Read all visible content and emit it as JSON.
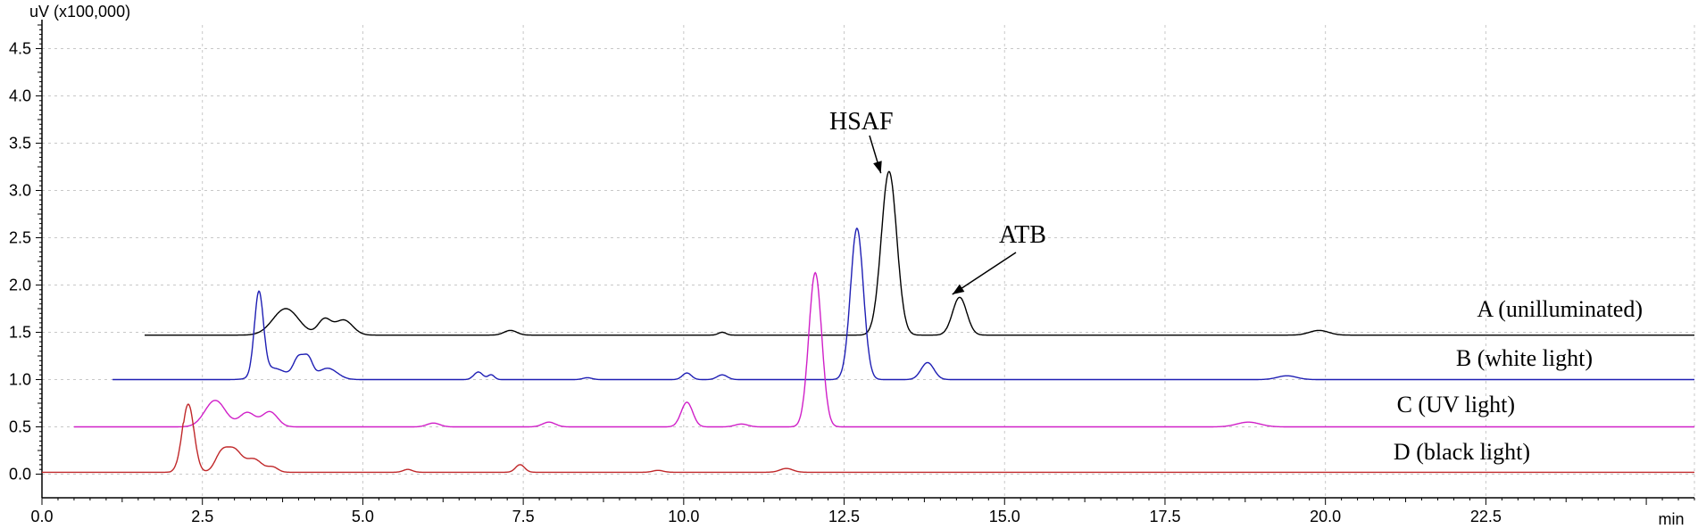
{
  "chart_data": {
    "type": "line",
    "title": "",
    "xlabel": "min",
    "ylabel": "uV (x100,000)",
    "xlim": [
      0,
      25.75
    ],
    "ylim": [
      -0.25,
      4.75
    ],
    "grid": true,
    "x_ticks": [
      0,
      2.5,
      5,
      7.5,
      10,
      12.5,
      15,
      17.5,
      20,
      22.5
    ],
    "x_tick_labels": [
      "0.0",
      "2.5",
      "5.0",
      "7.5",
      "10.0",
      "12.5",
      "15.0",
      "17.5",
      "20.0",
      "22.5"
    ],
    "y_ticks": [
      0,
      0.5,
      1,
      1.5,
      2,
      2.5,
      3,
      3.5,
      4,
      4.5
    ],
    "y_tick_labels": [
      "0.0",
      "0.5",
      "1.0",
      "1.5",
      "2.0",
      "2.5",
      "3.0",
      "3.5",
      "4.0",
      "4.5"
    ],
    "series": [
      {
        "name": "A (unilluminated)",
        "color": "#000000",
        "start": 1.6,
        "end": 25.75,
        "baseline": 1.47,
        "peaks": [
          [
            3.8,
            0.28,
            0.2
          ],
          [
            4.4,
            0.16,
            0.1
          ],
          [
            4.7,
            0.16,
            0.14
          ],
          [
            7.3,
            0.05,
            0.1
          ],
          [
            10.6,
            0.03,
            0.06
          ],
          [
            13.2,
            1.73,
            0.12
          ],
          [
            14.3,
            0.4,
            0.11
          ],
          [
            19.9,
            0.05,
            0.15
          ]
        ]
      },
      {
        "name": "B (white light)",
        "color": "#1f1fb4",
        "start": 1.1,
        "end": 25.75,
        "baseline": 1.0,
        "peaks": [
          [
            3.38,
            0.87,
            0.07
          ],
          [
            3.6,
            0.12,
            0.2
          ],
          [
            4.0,
            0.22,
            0.08
          ],
          [
            4.15,
            0.2,
            0.07
          ],
          [
            4.45,
            0.12,
            0.15
          ],
          [
            6.8,
            0.08,
            0.07
          ],
          [
            7.0,
            0.05,
            0.05
          ],
          [
            8.5,
            0.02,
            0.07
          ],
          [
            10.05,
            0.07,
            0.07
          ],
          [
            10.6,
            0.05,
            0.08
          ],
          [
            12.7,
            1.6,
            0.1
          ],
          [
            13.8,
            0.18,
            0.1
          ],
          [
            19.4,
            0.04,
            0.15
          ]
        ]
      },
      {
        "name": "C (UV light)",
        "color": "#d020c8",
        "start": 0.5,
        "end": 25.75,
        "baseline": 0.5,
        "peaks": [
          [
            2.7,
            0.28,
            0.16
          ],
          [
            3.2,
            0.15,
            0.12
          ],
          [
            3.55,
            0.16,
            0.12
          ],
          [
            6.1,
            0.04,
            0.1
          ],
          [
            7.9,
            0.05,
            0.1
          ],
          [
            10.05,
            0.26,
            0.09
          ],
          [
            10.9,
            0.03,
            0.1
          ],
          [
            12.05,
            1.63,
            0.1
          ],
          [
            18.8,
            0.05,
            0.18
          ]
        ]
      },
      {
        "name": "D (black light)",
        "color": "#c0282a",
        "start": 0,
        "end": 25.75,
        "baseline": 0.02,
        "peaks": [
          [
            2.28,
            0.72,
            0.09
          ],
          [
            2.8,
            0.2,
            0.1
          ],
          [
            3.0,
            0.22,
            0.11
          ],
          [
            3.3,
            0.14,
            0.13
          ],
          [
            3.6,
            0.05,
            0.08
          ],
          [
            5.7,
            0.03,
            0.07
          ],
          [
            7.45,
            0.08,
            0.07
          ],
          [
            9.6,
            0.02,
            0.08
          ],
          [
            11.6,
            0.04,
            0.1
          ]
        ],
        "ramp": [
          2.0,
          2.2
        ]
      }
    ],
    "annotations": [
      {
        "text": "HSAF",
        "x": 13.1,
        "y": 3.22
      },
      {
        "text": "ATB",
        "x": 14.2,
        "y": 1.92
      }
    ]
  }
}
